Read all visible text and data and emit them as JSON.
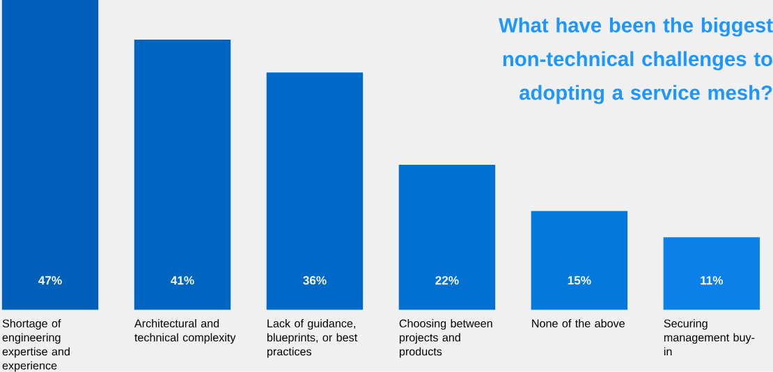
{
  "chart_data": {
    "type": "bar",
    "title": "What have been the biggest non-technical challenges to adopting a service mesh?",
    "categories": [
      "Shortage of engineering expertise and experience",
      "Architectural and technical complexity",
      "Lack of guidance, blueprints, or best practices",
      "Choosing between projects and products",
      "None of the above",
      "Securing management buy-in"
    ],
    "values": [
      47,
      41,
      36,
      22,
      15,
      11
    ],
    "value_labels": [
      "47%",
      "41%",
      "36%",
      "22%",
      "15%",
      "11%"
    ],
    "colors": [
      "#0160b9",
      "#0065c0",
      "#0069c7",
      "#0270d3",
      "#0578dd",
      "#0a80e8"
    ]
  }
}
